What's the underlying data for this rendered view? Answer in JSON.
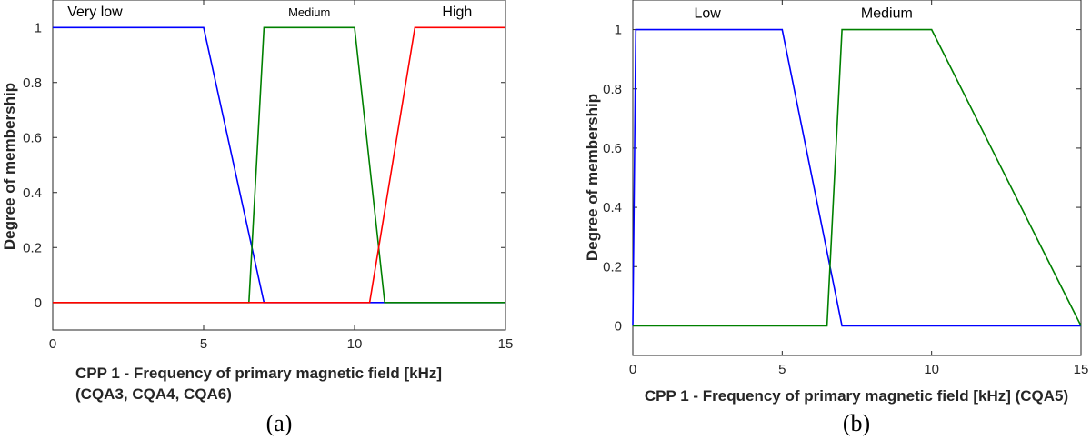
{
  "chart_data": [
    {
      "type": "line",
      "xlabel": "CPP 1 - Frequency of primary magnetic field [kHz]",
      "xlabel_line2": "(CQA3, CQA4, CQA6)",
      "ylabel": "Degree of membership",
      "xlim": [
        0,
        15
      ],
      "ylim": [
        -0.1,
        1.1
      ],
      "xticks": [
        "0",
        "5",
        "10",
        "15"
      ],
      "yticks": [
        "0",
        "0.2",
        "0.4",
        "0.6",
        "0.8",
        "1"
      ],
      "caption": "(a)",
      "grid": false,
      "series": [
        {
          "name": "Very low",
          "color": "#0000ff",
          "x": [
            0,
            5,
            7,
            15
          ],
          "y": [
            1,
            1,
            0,
            0
          ]
        },
        {
          "name": "Medium",
          "color": "#008000",
          "x": [
            0,
            6.5,
            7,
            10,
            11,
            15
          ],
          "y": [
            0,
            0,
            1,
            1,
            0,
            0
          ]
        },
        {
          "name": "High",
          "color": "#ff0000",
          "x": [
            0,
            10.5,
            12,
            15
          ],
          "y": [
            0,
            0,
            1,
            1
          ]
        }
      ],
      "annotations": [
        {
          "text": "Very low",
          "x": 1.4,
          "y": 1.04,
          "size": 16
        },
        {
          "text": "Medium",
          "x": 8.5,
          "y": 1.04,
          "size": 13
        },
        {
          "text": "High",
          "x": 13.4,
          "y": 1.04,
          "size": 16
        }
      ]
    },
    {
      "type": "line",
      "xlabel": "CPP 1 - Frequency of primary magnetic field [kHz] (CQA5)",
      "ylabel": "Degree of membership",
      "xlim": [
        0,
        15
      ],
      "ylim": [
        -0.1,
        1.1
      ],
      "xticks": [
        "0",
        "5",
        "10",
        "15"
      ],
      "yticks": [
        "0",
        "0.2",
        "0.4",
        "0.6",
        "0.8",
        "1"
      ],
      "caption": "(b)",
      "grid": false,
      "series": [
        {
          "name": "Low",
          "color": "#0000ff",
          "x": [
            0,
            0.1,
            5,
            7,
            15
          ],
          "y": [
            0,
            1,
            1,
            0,
            0
          ]
        },
        {
          "name": "Medium",
          "color": "#008000",
          "x": [
            0,
            6.5,
            7,
            10,
            15
          ],
          "y": [
            0,
            0,
            1,
            1,
            0
          ]
        }
      ],
      "annotations": [
        {
          "text": "Low",
          "x": 2.5,
          "y": 1.04,
          "size": 16
        },
        {
          "text": "Medium",
          "x": 8.5,
          "y": 1.04,
          "size": 16
        }
      ]
    }
  ]
}
